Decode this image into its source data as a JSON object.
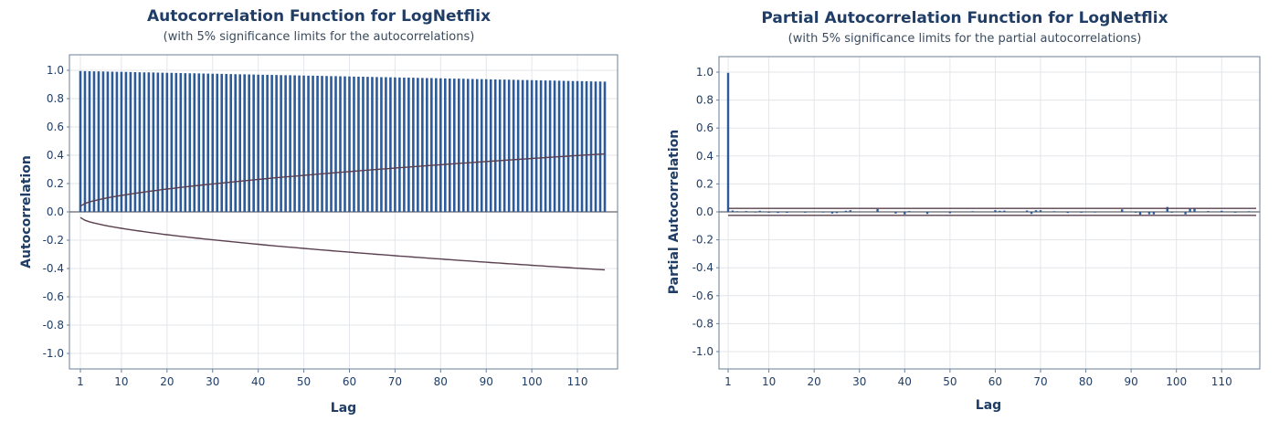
{
  "chart_data": [
    {
      "type": "bar",
      "title": "Autocorrelation Function for LogNetflix",
      "subtitle": "(with 5% significance limits for the autocorrelations)",
      "xlabel": "Lag",
      "ylabel": "Autocorrelation",
      "xlim": [
        1,
        116
      ],
      "ylim": [
        -1.0,
        1.0
      ],
      "xticks": [
        "1",
        "10",
        "20",
        "30",
        "40",
        "50",
        "60",
        "70",
        "80",
        "90",
        "100",
        "110"
      ],
      "yticks": [
        "1.0",
        "0.8",
        "0.6",
        "0.4",
        "0.2",
        "0.0",
        "-0.2",
        "-0.4",
        "-0.6",
        "-0.8",
        "-1.0"
      ],
      "grid": true,
      "lags": {
        "start": 1,
        "end": 116
      },
      "acf_linear": {
        "first": 0.995,
        "last": 0.92
      },
      "significance_limit": {
        "lag1": 0.04,
        "lag116": 0.41
      },
      "colors": {
        "bar": "#2d5b9a",
        "limit": "#5a3f4e",
        "grid": "#e3e6ea",
        "frame": "#6a7f98",
        "text": "#1f3d66"
      }
    },
    {
      "type": "bar",
      "title": "Partial Autocorrelation Function for LogNetflix",
      "subtitle": "(with 5% significance limits for the partial autocorrelations)",
      "xlabel": "Lag",
      "ylabel": "Partial Autocorrelation",
      "xlim": [
        1,
        116
      ],
      "ylim": [
        -1.0,
        1.0
      ],
      "xticks": [
        "1",
        "10",
        "20",
        "30",
        "40",
        "50",
        "60",
        "70",
        "80",
        "90",
        "100",
        "110"
      ],
      "yticks": [
        "1.0",
        "0.8",
        "0.6",
        "0.4",
        "0.2",
        "0.0",
        "-0.2",
        "-0.4",
        "-0.6",
        "-0.8",
        "-1.0"
      ],
      "grid": true,
      "pacf": [
        [
          1,
          0.995
        ],
        [
          2,
          0.01
        ],
        [
          3,
          0.005
        ],
        [
          5,
          0.006
        ],
        [
          7,
          -0.005
        ],
        [
          8,
          0.008
        ],
        [
          10,
          -0.006
        ],
        [
          12,
          -0.008
        ],
        [
          14,
          -0.007
        ],
        [
          18,
          -0.006
        ],
        [
          22,
          -0.005
        ],
        [
          24,
          -0.012
        ],
        [
          25,
          -0.009
        ],
        [
          27,
          0.008
        ],
        [
          28,
          0.012
        ],
        [
          34,
          0.02
        ],
        [
          38,
          -0.012
        ],
        [
          40,
          -0.018
        ],
        [
          41,
          0.006
        ],
        [
          45,
          -0.015
        ],
        [
          50,
          -0.01
        ],
        [
          55,
          0.005
        ],
        [
          60,
          0.012
        ],
        [
          61,
          0.008
        ],
        [
          62,
          0.009
        ],
        [
          67,
          0.01
        ],
        [
          68,
          -0.015
        ],
        [
          69,
          0.012
        ],
        [
          70,
          0.012
        ],
        [
          73,
          0.005
        ],
        [
          76,
          -0.008
        ],
        [
          79,
          -0.006
        ],
        [
          82,
          -0.005
        ],
        [
          88,
          0.018
        ],
        [
          91,
          -0.006
        ],
        [
          92,
          -0.02
        ],
        [
          94,
          -0.017
        ],
        [
          95,
          -0.018
        ],
        [
          98,
          0.035
        ],
        [
          99,
          -0.006
        ],
        [
          102,
          -0.018
        ],
        [
          103,
          0.022
        ],
        [
          104,
          0.026
        ],
        [
          107,
          0.006
        ],
        [
          110,
          0.008
        ],
        [
          113,
          -0.006
        ],
        [
          116,
          0.005
        ]
      ],
      "significance_limit": 0.025,
      "colors": {
        "bar": "#2d5b9a",
        "limit": "#5a3f4e",
        "grid": "#e3e6ea",
        "frame": "#6a7f98",
        "text": "#1f3d66"
      }
    }
  ]
}
